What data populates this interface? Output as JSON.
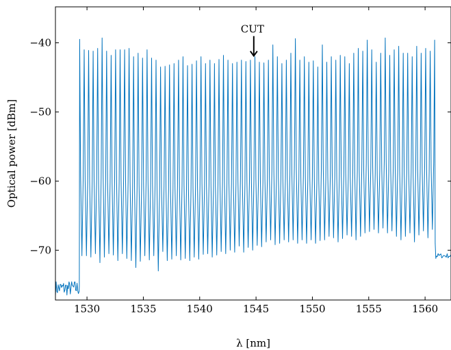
{
  "chart_data": {
    "type": "line",
    "title": "",
    "xlabel": "λ [nm]",
    "ylabel": "Optical power [dBm]",
    "xlim": [
      1527.2,
      1562.3
    ],
    "ylim": [
      -77.2,
      -34.8
    ],
    "xticks": [
      1530,
      1535,
      1540,
      1545,
      1550,
      1555,
      1560
    ],
    "yticks": [
      -70,
      -60,
      -50,
      -40
    ],
    "xtick_labels": [
      "1530",
      "1535",
      "1540",
      "1545",
      "1550",
      "1555",
      "1560"
    ],
    "ytick_labels": [
      "−70",
      "−60",
      "−50",
      "−40"
    ],
    "grid": false,
    "legend": "none",
    "color": "#0072bd",
    "series": [
      {
        "noise_floor_left": {
          "x_range": [
            1527.2,
            1529.3
          ],
          "level": -75.5
        },
        "channels": {
          "x_start": 1529.35,
          "x_end": 1560.85,
          "count": 80,
          "peaks": [
            -39.5,
            -41.0,
            -41.1,
            -41.2,
            -40.8,
            -39.3,
            -41.2,
            -41.8,
            -41.0,
            -41.0,
            -41.0,
            -40.8,
            -42.0,
            -41.5,
            -42.2,
            -41.0,
            -42.2,
            -42.5,
            -43.5,
            -43.4,
            -43.2,
            -43.0,
            -42.5,
            -42.0,
            -43.3,
            -43.1,
            -42.6,
            -42.0,
            -43.0,
            -42.5,
            -43.0,
            -42.4,
            -41.8,
            -42.5,
            -43.0,
            -42.8,
            -42.5,
            -42.7,
            -42.5,
            -42.0,
            -42.8,
            -42.9,
            -42.5,
            -40.3,
            -42.0,
            -43.0,
            -42.5,
            -41.5,
            -39.4,
            -42.5,
            -42.0,
            -42.8,
            -42.6,
            -43.5,
            -40.3,
            -42.8,
            -42.0,
            -42.5,
            -41.8,
            -42.0,
            -43.0,
            -41.5,
            -40.8,
            -41.2,
            -39.6,
            -41.0,
            -42.8,
            -41.5,
            -39.3,
            -41.8,
            -41.0,
            -40.5,
            -41.5,
            -41.5,
            -42.0,
            -40.5,
            -41.5,
            -40.8,
            -41.2,
            -39.6
          ],
          "troughs": [
            -70.8,
            -70.8,
            -71.0,
            -70.5,
            -71.8,
            -71.0,
            -70.5,
            -70.7,
            -71.5,
            -70.5,
            -71.2,
            -71.5,
            -72.5,
            -71.6,
            -70.8,
            -71.4,
            -70.8,
            -73.0,
            -70.2,
            -71.5,
            -71.3,
            -70.8,
            -71.4,
            -71.2,
            -71.5,
            -71.0,
            -71.3,
            -70.6,
            -70.5,
            -71.0,
            -70.7,
            -70.2,
            -70.5,
            -70.0,
            -70.3,
            -69.4,
            -70.3,
            -69.6,
            -70.0,
            -69.3,
            -69.5,
            -68.8,
            -68.5,
            -69.2,
            -69.0,
            -68.5,
            -68.8,
            -68.5,
            -69.0,
            -68.5,
            -69.0,
            -68.5,
            -69.0,
            -68.6,
            -68.5,
            -68.0,
            -68.2,
            -68.8,
            -68.3,
            -67.8,
            -68.0,
            -68.5,
            -68.0,
            -67.5,
            -67.3,
            -67.0,
            -67.5,
            -66.8,
            -67.5,
            -67.2,
            -68.0,
            -68.5,
            -68.0,
            -67.5,
            -68.8,
            -67.8,
            -67.2,
            -68.2,
            -67.0,
            -68.0
          ]
        },
        "noise_floor_right": {
          "x_range": [
            1560.85,
            1562.3
          ],
          "level": -70.8
        }
      }
    ],
    "annotations": [
      {
        "text": "CUT",
        "x": 1544.8,
        "y": -42.0,
        "arrow": "down"
      }
    ]
  }
}
